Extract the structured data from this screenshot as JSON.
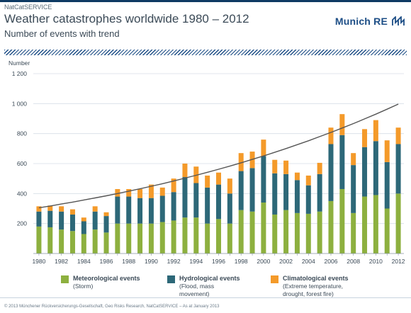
{
  "header": {
    "source_tag": "NatCatSERVICE",
    "title": "Weather catastrophes worldwide 1980 – 2012",
    "subtitle": "Number of events with trend",
    "brand": "Munich RE",
    "brand_mark": "munich-re-mark-icon"
  },
  "footer": {
    "text": "© 2013 Münchener Rückversicherungs-Gesellschaft, Geo Risks Research, NatCatSERVICE – As at January 2013"
  },
  "colors": {
    "meteorological": "#8db03f",
    "hydrological": "#2d6878",
    "climatological": "#f49a2a",
    "trend": "#555555",
    "brand": "#1d4e86"
  },
  "chart_data": {
    "type": "bar",
    "stacked": true,
    "title": "Weather catastrophes worldwide 1980 – 2012",
    "subtitle": "Number of events with trend",
    "ylabel": "Number",
    "xlabel": "",
    "ylim": [
      0,
      1200
    ],
    "yticks": [
      200,
      400,
      600,
      800,
      1000,
      1200
    ],
    "ytick_labels": [
      "200",
      "400",
      "600",
      "800",
      "1 000",
      "1 200"
    ],
    "grid": true,
    "legend_position": "bottom",
    "categories": [
      1980,
      1981,
      1982,
      1983,
      1984,
      1985,
      1986,
      1987,
      1988,
      1989,
      1990,
      1991,
      1992,
      1993,
      1994,
      1995,
      1996,
      1997,
      1998,
      1999,
      2000,
      2001,
      2002,
      2003,
      2004,
      2005,
      2006,
      2007,
      2008,
      2009,
      2010,
      2011,
      2012
    ],
    "xtick_labels": [
      "1980",
      "1982",
      "1984",
      "1986",
      "1988",
      "1990",
      "1992",
      "1994",
      "1996",
      "1998",
      "2000",
      "2002",
      "2004",
      "2006",
      "2008",
      "2010",
      "2012"
    ],
    "series": [
      {
        "name": "Meteorological events",
        "description": "(Storm)",
        "color": "#8db03f",
        "values": [
          180,
          175,
          160,
          150,
          130,
          160,
          140,
          200,
          200,
          200,
          200,
          210,
          220,
          240,
          240,
          200,
          230,
          200,
          290,
          280,
          340,
          260,
          290,
          270,
          265,
          280,
          350,
          430,
          270,
          380,
          390,
          300,
          400
        ]
      },
      {
        "name": "Hydrological events",
        "description": "(Flood, mass\nmovement)",
        "color": "#2d6878",
        "values": [
          100,
          110,
          120,
          110,
          85,
          120,
          110,
          180,
          180,
          170,
          170,
          175,
          190,
          270,
          230,
          240,
          230,
          200,
          260,
          290,
          310,
          275,
          240,
          220,
          190,
          250,
          380,
          360,
          320,
          330,
          360,
          310,
          330
        ]
      },
      {
        "name": "Climatological events",
        "description": "(Extreme temperature,\ndrought, forest fire)",
        "color": "#f49a2a",
        "values": [
          35,
          35,
          35,
          35,
          25,
          35,
          25,
          50,
          50,
          60,
          90,
          55,
          90,
          90,
          110,
          80,
          80,
          100,
          120,
          110,
          110,
          90,
          90,
          50,
          65,
          75,
          110,
          140,
          80,
          120,
          140,
          145,
          110
        ]
      }
    ],
    "trend": {
      "type": "exponential",
      "color": "#555555",
      "values": [
        305,
        317,
        330,
        343,
        357,
        371,
        385,
        400,
        416,
        432,
        449,
        466,
        484,
        503,
        522,
        542,
        562,
        583,
        605,
        628,
        651,
        675,
        700,
        726,
        752,
        780,
        808,
        837,
        867,
        898,
        930,
        963,
        997
      ]
    }
  }
}
